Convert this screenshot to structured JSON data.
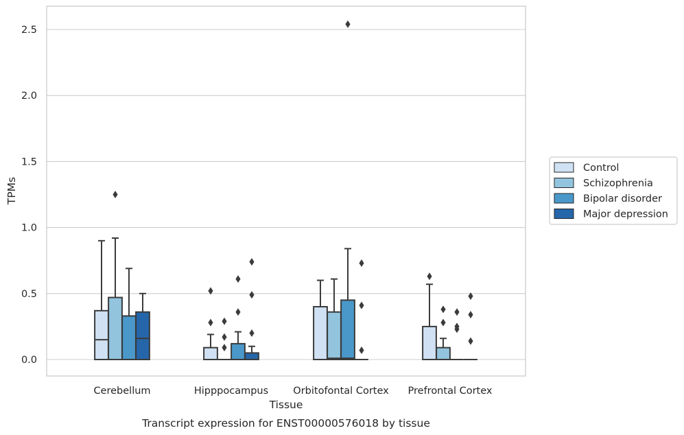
{
  "chart_data": {
    "type": "box",
    "title": "",
    "caption": "Transcript expression for ENST00000576018 by tissue",
    "xlabel": "Tissue",
    "ylabel": "TPMs",
    "ylim": [
      -0.12,
      2.68
    ],
    "yticks": [
      0.0,
      0.5,
      1.0,
      1.5,
      2.0,
      2.5
    ],
    "ytick_labels": [
      "0.0",
      "0.5",
      "1.0",
      "1.5",
      "2.0",
      "2.5"
    ],
    "grid": true,
    "legend_position": "right",
    "categories": [
      "Cerebellum",
      "Hipppocampus",
      "Orbitofontal Cortex",
      "Prefrontal Cortex"
    ],
    "series": [
      {
        "name": "Control",
        "color": "#cfe1f2",
        "boxes": [
          {
            "whisker_low": 0.0,
            "q1": 0.0,
            "median": 0.15,
            "q3": 0.37,
            "whisker_high": 0.9,
            "outliers": []
          },
          {
            "whisker_low": 0.0,
            "q1": 0.0,
            "median": 0.0,
            "q3": 0.09,
            "whisker_high": 0.19,
            "outliers": [
              0.28,
              0.52
            ]
          },
          {
            "whisker_low": 0.0,
            "q1": 0.0,
            "median": 0.0,
            "q3": 0.4,
            "whisker_high": 0.6,
            "outliers": []
          },
          {
            "whisker_low": 0.0,
            "q1": 0.0,
            "median": 0.0,
            "q3": 0.25,
            "whisker_high": 0.57,
            "outliers": [
              0.63
            ]
          }
        ]
      },
      {
        "name": "Schizophrenia",
        "color": "#93c4de",
        "boxes": [
          {
            "whisker_low": 0.0,
            "q1": 0.0,
            "median": 0.0,
            "q3": 0.47,
            "whisker_high": 0.92,
            "outliers": [
              1.25
            ]
          },
          {
            "whisker_low": 0.0,
            "q1": 0.0,
            "median": 0.0,
            "q3": 0.0,
            "whisker_high": 0.0,
            "outliers": [
              0.09,
              0.17,
              0.29
            ]
          },
          {
            "whisker_low": 0.0,
            "q1": 0.0,
            "median": 0.01,
            "q3": 0.36,
            "whisker_high": 0.61,
            "outliers": []
          },
          {
            "whisker_low": 0.0,
            "q1": 0.0,
            "median": 0.0,
            "q3": 0.09,
            "whisker_high": 0.16,
            "outliers": [
              0.28,
              0.38
            ]
          }
        ]
      },
      {
        "name": "Bipolar disorder",
        "color": "#4a98c9",
        "boxes": [
          {
            "whisker_low": 0.0,
            "q1": 0.0,
            "median": 0.0,
            "q3": 0.33,
            "whisker_high": 0.69,
            "outliers": []
          },
          {
            "whisker_low": 0.0,
            "q1": 0.0,
            "median": 0.0,
            "q3": 0.12,
            "whisker_high": 0.21,
            "outliers": [
              0.36,
              0.61
            ]
          },
          {
            "whisker_low": 0.0,
            "q1": 0.0,
            "median": 0.01,
            "q3": 0.45,
            "whisker_high": 0.84,
            "outliers": [
              2.54
            ]
          },
          {
            "whisker_low": 0.0,
            "q1": 0.0,
            "median": 0.0,
            "q3": 0.0,
            "whisker_high": 0.0,
            "outliers": [
              0.23,
              0.25,
              0.36
            ]
          }
        ]
      },
      {
        "name": "Major depression",
        "color": "#2565a9",
        "boxes": [
          {
            "whisker_low": 0.0,
            "q1": 0.0,
            "median": 0.16,
            "q3": 0.36,
            "whisker_high": 0.5,
            "outliers": []
          },
          {
            "whisker_low": 0.0,
            "q1": 0.0,
            "median": 0.0,
            "q3": 0.05,
            "whisker_high": 0.1,
            "outliers": [
              0.2,
              0.49,
              0.74
            ]
          },
          {
            "whisker_low": 0.0,
            "q1": 0.0,
            "median": 0.0,
            "q3": 0.0,
            "whisker_high": 0.0,
            "outliers": [
              0.07,
              0.41,
              0.73
            ]
          },
          {
            "whisker_low": 0.0,
            "q1": 0.0,
            "median": 0.0,
            "q3": 0.0,
            "whisker_high": 0.0,
            "outliers": [
              0.14,
              0.34,
              0.48
            ]
          }
        ]
      }
    ]
  }
}
